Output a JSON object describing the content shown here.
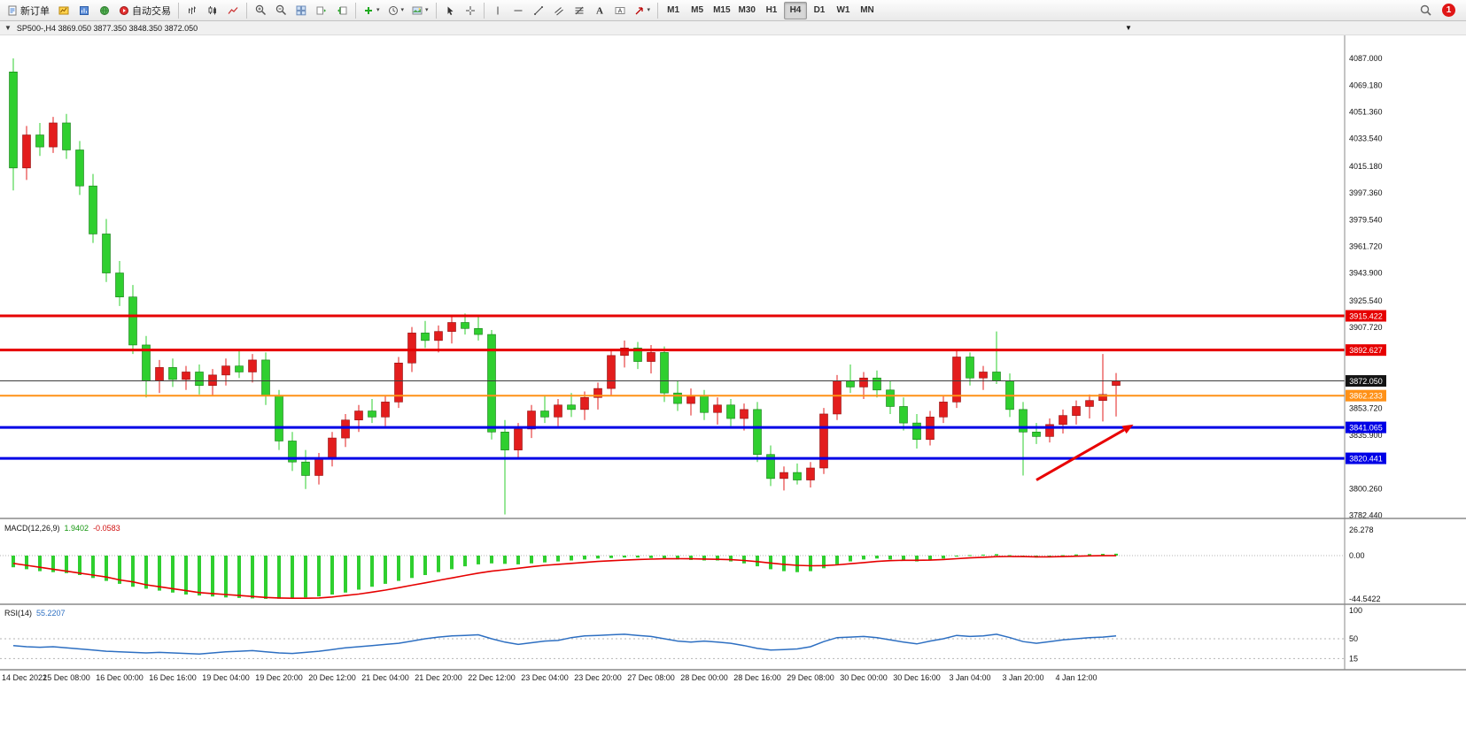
{
  "toolbar": {
    "new_order": "新订单",
    "auto_trading": "自动交易",
    "timeframes": [
      "M1",
      "M5",
      "M15",
      "M30",
      "H1",
      "H4",
      "D1",
      "W1",
      "MN"
    ],
    "active_timeframe": "H4",
    "notification_count": "1"
  },
  "chart_header": {
    "symbol_info": "SP500-,H4  3869.050 3877.350 3848.350 3872.050"
  },
  "indicators": {
    "macd": {
      "name": "MACD(12,26,9)",
      "main_value": "1.9402",
      "signal_value": "-0.0583"
    },
    "rsi": {
      "name": "RSI(14)",
      "value": "55.2207"
    }
  },
  "chart_data": {
    "type": "candlestick",
    "symbol": "SP500-",
    "timeframe": "H4",
    "colors": {
      "up": "#e31d1d",
      "up_stroke": "#8f0f0f",
      "down": "#2fcf2f",
      "down_stroke": "#157a15",
      "macd_hist": "#2fcf2f",
      "macd_signal": "#e60000",
      "rsi_line": "#2d6fc2"
    },
    "ohlc": [
      [
        4078,
        4087,
        3999,
        4014
      ],
      [
        4014,
        4042,
        4006,
        4036
      ],
      [
        4036,
        4044,
        4022,
        4028
      ],
      [
        4028,
        4048,
        4024,
        4044
      ],
      [
        4044,
        4050,
        4020,
        4026
      ],
      [
        4026,
        4032,
        3996,
        4002
      ],
      [
        4002,
        4010,
        3964,
        3970
      ],
      [
        3970,
        3980,
        3938,
        3944
      ],
      [
        3944,
        3952,
        3922,
        3928
      ],
      [
        3928,
        3936,
        3890,
        3896
      ],
      [
        3896,
        3902,
        3861,
        3872
      ],
      [
        3872,
        3886,
        3864,
        3881
      ],
      [
        3881,
        3887,
        3868,
        3873
      ],
      [
        3873,
        3882,
        3866,
        3878
      ],
      [
        3878,
        3883,
        3863,
        3869
      ],
      [
        3869,
        3880,
        3862,
        3876
      ],
      [
        3876,
        3887,
        3869,
        3882
      ],
      [
        3882,
        3892,
        3874,
        3878
      ],
      [
        3878,
        3890,
        3871,
        3886
      ],
      [
        3886,
        3891,
        3856,
        3862
      ],
      [
        3862,
        3866,
        3826,
        3832
      ],
      [
        3832,
        3838,
        3812,
        3818
      ],
      [
        3818,
        3826,
        3800,
        3809
      ],
      [
        3809,
        3824,
        3803,
        3820
      ],
      [
        3820,
        3838,
        3815,
        3834
      ],
      [
        3834,
        3850,
        3828,
        3846
      ],
      [
        3846,
        3856,
        3838,
        3852
      ],
      [
        3852,
        3860,
        3844,
        3848
      ],
      [
        3848,
        3862,
        3842,
        3858
      ],
      [
        3858,
        3888,
        3854,
        3884
      ],
      [
        3884,
        3908,
        3878,
        3904
      ],
      [
        3904,
        3912,
        3894,
        3899
      ],
      [
        3899,
        3909,
        3891,
        3905
      ],
      [
        3905,
        3915,
        3897,
        3911
      ],
      [
        3911,
        3917,
        3903,
        3907
      ],
      [
        3907,
        3916,
        3899,
        3903
      ],
      [
        3903,
        3906,
        3833,
        3838
      ],
      [
        3838,
        3846,
        3783,
        3826
      ],
      [
        3826,
        3844,
        3820,
        3840
      ],
      [
        3840,
        3856,
        3834,
        3852
      ],
      [
        3852,
        3862,
        3844,
        3848
      ],
      [
        3848,
        3860,
        3842,
        3856
      ],
      [
        3856,
        3864,
        3848,
        3853
      ],
      [
        3853,
        3865,
        3846,
        3861
      ],
      [
        3861,
        3871,
        3853,
        3867
      ],
      [
        3867,
        3893,
        3862,
        3889
      ],
      [
        3889,
        3899,
        3881,
        3894
      ],
      [
        3894,
        3898,
        3880,
        3885
      ],
      [
        3885,
        3896,
        3877,
        3891
      ],
      [
        3891,
        3895,
        3858,
        3864
      ],
      [
        3864,
        3872,
        3852,
        3857
      ],
      [
        3857,
        3867,
        3849,
        3862
      ],
      [
        3862,
        3866,
        3846,
        3851
      ],
      [
        3851,
        3861,
        3843,
        3856
      ],
      [
        3856,
        3860,
        3842,
        3847
      ],
      [
        3847,
        3857,
        3839,
        3853
      ],
      [
        3853,
        3858,
        3818,
        3823
      ],
      [
        3823,
        3829,
        3802,
        3807
      ],
      [
        3807,
        3815,
        3799,
        3811
      ],
      [
        3811,
        3817,
        3803,
        3806
      ],
      [
        3806,
        3818,
        3801,
        3814
      ],
      [
        3814,
        3854,
        3810,
        3850
      ],
      [
        3850,
        3876,
        3846,
        3872
      ],
      [
        3872,
        3883,
        3864,
        3868
      ],
      [
        3868,
        3878,
        3860,
        3874
      ],
      [
        3874,
        3879,
        3861,
        3866
      ],
      [
        3866,
        3872,
        3850,
        3855
      ],
      [
        3855,
        3861,
        3839,
        3844
      ],
      [
        3844,
        3850,
        3827,
        3833
      ],
      [
        3833,
        3852,
        3829,
        3848
      ],
      [
        3848,
        3862,
        3844,
        3858
      ],
      [
        3858,
        3892,
        3854,
        3888
      ],
      [
        3888,
        3891,
        3869,
        3874
      ],
      [
        3874,
        3882,
        3866,
        3878
      ],
      [
        3878,
        3905,
        3870,
        3872
      ],
      [
        3872,
        3877,
        3848,
        3853
      ],
      [
        3853,
        3858,
        3809,
        3838
      ],
      [
        3838,
        3844,
        3830,
        3835
      ],
      [
        3835,
        3847,
        3831,
        3843
      ],
      [
        3843,
        3853,
        3837,
        3849
      ],
      [
        3849,
        3859,
        3843,
        3855
      ],
      [
        3855,
        3863,
        3847,
        3859
      ],
      [
        3859,
        3890,
        3845,
        3863
      ],
      [
        3869.05,
        3877.35,
        3848.35,
        3872.05
      ]
    ],
    "time_labels": [
      "14 Dec 2022",
      "15 Dec 08:00",
      "16 Dec 00:00",
      "16 Dec 16:00",
      "19 Dec 04:00",
      "19 Dec 20:00",
      "20 Dec 12:00",
      "21 Dec 04:00",
      "21 Dec 20:00",
      "22 Dec 12:00",
      "23 Dec 04:00",
      "23 Dec 20:00",
      "27 Dec 08:00",
      "28 Dec 00:00",
      "28 Dec 16:00",
      "29 Dec 08:00",
      "30 Dec 00:00",
      "30 Dec 16:00",
      "3 Jan 04:00",
      "3 Jan 20:00",
      "4 Jan 12:00"
    ],
    "label_every": 4,
    "y_axis_labels": [
      "4087.000",
      "4069.180",
      "4051.360",
      "4033.540",
      "4015.180",
      "3997.360",
      "3979.540",
      "3961.720",
      "3943.900",
      "3925.540",
      "3907.720",
      "3853.720",
      "3835.900",
      "3800.260",
      "3782.440"
    ],
    "hlines": [
      {
        "price": 3915.422,
        "label": "3915.422",
        "color": "#e60000",
        "width": 3,
        "tag_bg": "#e60000"
      },
      {
        "price": 3892.627,
        "label": "3892.627",
        "color": "#e60000",
        "width": 3,
        "tag_bg": "#e60000"
      },
      {
        "price": 3872.05,
        "label": "3872.050",
        "color": "#3c3c3c",
        "width": 1,
        "tag_bg": "#141414"
      },
      {
        "price": 3862.233,
        "label": "3862.233",
        "color": "#ff9117",
        "width": 2,
        "tag_bg": "#ff9117"
      },
      {
        "price": 3841.065,
        "label": "3841.065",
        "color": "#0000e6",
        "width": 3,
        "tag_bg": "#0000e6"
      },
      {
        "price": 3820.441,
        "label": "3820.441",
        "color": "#0000e6",
        "width": 3,
        "tag_bg": "#0000e6"
      }
    ],
    "annotations": [
      {
        "type": "arrow",
        "from_bar": 77,
        "from_price": 3806,
        "to_bar": 84.3,
        "to_price": 3843,
        "color": "#e80000"
      }
    ],
    "macd": {
      "hist": [
        -12,
        -14,
        -16,
        -17,
        -18,
        -20,
        -23,
        -26,
        -29,
        -32,
        -34,
        -36,
        -38,
        -40,
        -41,
        -42,
        -43,
        -43.5,
        -44,
        -44.5,
        -44.3,
        -43.8,
        -43,
        -42,
        -40,
        -38,
        -35,
        -32,
        -29,
        -26,
        -23,
        -20,
        -17,
        -14,
        -11,
        -9,
        -8,
        -8.5,
        -9,
        -8,
        -7,
        -6,
        -5,
        -4,
        -3,
        -2.5,
        -2,
        -2,
        -2.5,
        -3,
        -4,
        -4.5,
        -5,
        -5,
        -6,
        -8,
        -11,
        -14,
        -16,
        -17,
        -16,
        -13,
        -9,
        -6,
        -4,
        -3,
        -4,
        -5,
        -6,
        -5,
        -3,
        -1,
        0.5,
        1,
        1.5,
        0.5,
        -1,
        -2,
        -1,
        0.5,
        1.2,
        1.6,
        1.8,
        1.94
      ],
      "signal": [
        -8,
        -10,
        -12,
        -14,
        -16,
        -18,
        -20,
        -22,
        -25,
        -27,
        -30,
        -32,
        -34,
        -36,
        -38,
        -39,
        -40,
        -41,
        -42,
        -43,
        -43.5,
        -43.8,
        -43.8,
        -43.5,
        -42.5,
        -41,
        -39.5,
        -37.5,
        -35.5,
        -33,
        -30.5,
        -28,
        -25.5,
        -23,
        -20.5,
        -18,
        -16,
        -14.5,
        -13,
        -11.5,
        -10,
        -9,
        -8,
        -7,
        -6,
        -5.3,
        -4.6,
        -4,
        -3.6,
        -3.3,
        -3.2,
        -3.3,
        -3.5,
        -3.8,
        -4.2,
        -5,
        -6.2,
        -7.6,
        -9,
        -10,
        -10.5,
        -10.3,
        -9.5,
        -8.4,
        -7.2,
        -6,
        -5.2,
        -4.8,
        -4.8,
        -4.6,
        -4,
        -3.2,
        -2.4,
        -1.7,
        -1.1,
        -0.9,
        -1,
        -1.3,
        -1.3,
        -1,
        -0.6,
        -0.3,
        -0.1,
        -0.06
      ],
      "axis": [
        {
          "v": 26.278,
          "label": "26.278"
        },
        {
          "v": 0,
          "label": "0.00"
        },
        {
          "v": -44.5422,
          "label": "-44.5422"
        }
      ]
    },
    "rsi": {
      "values": [
        38,
        36,
        35,
        36,
        34,
        32,
        30,
        28,
        27,
        26,
        25,
        26,
        25,
        24,
        23,
        25,
        27,
        28,
        29,
        27,
        25,
        24,
        26,
        28,
        31,
        34,
        36,
        38,
        40,
        42,
        46,
        50,
        53,
        55,
        56,
        57,
        50,
        44,
        40,
        43,
        46,
        47,
        52,
        55,
        56,
        57,
        58,
        56,
        54,
        50,
        46,
        44,
        46,
        44,
        42,
        38,
        33,
        30,
        31,
        32,
        36,
        45,
        52,
        53,
        54,
        52,
        48,
        44,
        41,
        46,
        50,
        56,
        54,
        55,
        58,
        52,
        45,
        42,
        45,
        48,
        50,
        52,
        53,
        55.22
      ],
      "levels": [
        50,
        15
      ],
      "axis": [
        {
          "v": 100,
          "label": "100"
        },
        {
          "v": 50,
          "label": "50"
        },
        {
          "v": 15,
          "label": "15"
        }
      ]
    }
  }
}
